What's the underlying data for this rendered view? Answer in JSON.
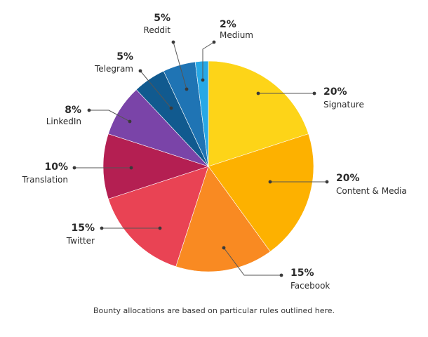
{
  "chart_data": {
    "type": "pie",
    "start_angle_deg": 0,
    "direction": "clockwise",
    "slices": [
      {
        "label": "Signature",
        "percent_text": "20%",
        "value": 20,
        "color": "#fdd418"
      },
      {
        "label": "Content & Media",
        "percent_text": "20%",
        "value": 20,
        "color": "#fdb100"
      },
      {
        "label": "Facebook",
        "percent_text": "15%",
        "value": 15,
        "color": "#f98a22"
      },
      {
        "label": "Twitter",
        "percent_text": "15%",
        "value": 15,
        "color": "#e94354"
      },
      {
        "label": "Translation",
        "percent_text": "10%",
        "value": 10,
        "color": "#b41f52"
      },
      {
        "label": "LinkedIn",
        "percent_text": "8%",
        "value": 8,
        "color": "#7a44a8"
      },
      {
        "label": "Telegram",
        "percent_text": "5%",
        "value": 5,
        "color": "#115a8f"
      },
      {
        "label": "Reddit",
        "percent_text": "5%",
        "value": 5,
        "color": "#1f74b4"
      },
      {
        "label": "Medium",
        "percent_text": "2%",
        "value": 2,
        "color": "#27a8e6"
      }
    ]
  },
  "caption": "Bounty allocations are based on particular rules outlined here.",
  "leader_color": "#555555"
}
